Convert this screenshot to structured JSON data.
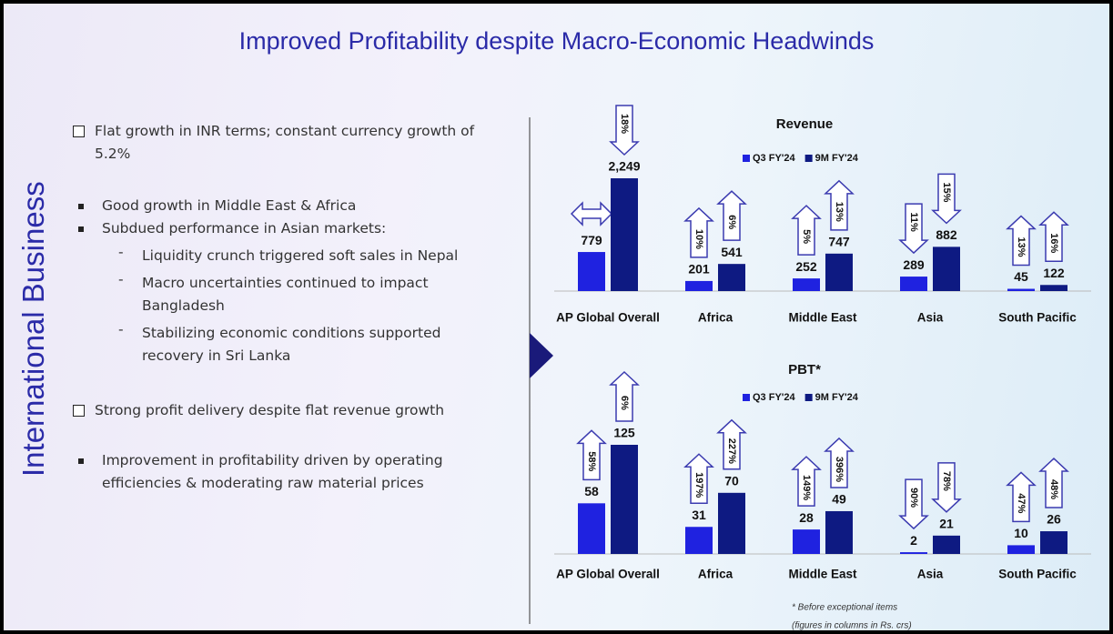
{
  "title": "Improved Profitability despite Macro-Economic Headwinds",
  "side_label": "International Business",
  "bullets": [
    {
      "level": "box",
      "text": "Flat growth in INR terms; constant currency growth of 5.2%"
    },
    {
      "level": "square",
      "text": "Good growth in Middle East & Africa"
    },
    {
      "level": "square",
      "text": "Subdued performance in Asian markets:"
    },
    {
      "level": "dash",
      "text": "Liquidity crunch triggered soft sales in Nepal"
    },
    {
      "level": "dash",
      "text": "Macro uncertainties continued to impact Bangladesh"
    },
    {
      "level": "dash",
      "text": "Stabilizing economic conditions supported recovery in Sri Lanka"
    },
    {
      "level": "box",
      "text": "Strong profit delivery despite flat revenue growth"
    },
    {
      "level": "square",
      "text": "Improvement in profitability driven by operating efficiencies & moderating raw material prices"
    }
  ],
  "chart_data": [
    {
      "type": "bar",
      "title": "Revenue",
      "categories": [
        "AP Global Overall",
        "Africa",
        "Middle East",
        "Asia",
        "South Pacific"
      ],
      "series": [
        {
          "name": "Q3 FY'24",
          "color": "#1f22e0",
          "values": [
            779,
            201,
            252,
            289,
            45
          ],
          "growth_labels": [
            null,
            "10%",
            "5%",
            "11%",
            "13%"
          ],
          "growth_dirs": [
            "both",
            "up",
            "up",
            "down",
            "up"
          ]
        },
        {
          "name": "9M FY'24",
          "color": "#0e1a82",
          "values": [
            2249,
            541,
            747,
            882,
            122
          ],
          "value_labels": [
            "2,249",
            "541",
            "747",
            "882",
            "122"
          ],
          "growth_labels": [
            "18%",
            "6%",
            "13%",
            "15%",
            "16%"
          ],
          "growth_dirs": [
            "down",
            "up",
            "up",
            "down",
            "up"
          ]
        }
      ]
    },
    {
      "type": "bar",
      "title": "PBT*",
      "categories": [
        "AP Global Overall",
        "Africa",
        "Middle East",
        "Asia",
        "South Pacific"
      ],
      "series": [
        {
          "name": "Q3 FY'24",
          "color": "#1f22e0",
          "values": [
            58,
            31,
            28,
            2,
            10
          ],
          "growth_labels": [
            "58%",
            "197%",
            "149%",
            "90%",
            "47%"
          ],
          "growth_dirs": [
            "up",
            "up",
            "up",
            "down",
            "up"
          ]
        },
        {
          "name": "9M FY'24",
          "color": "#0e1a82",
          "values": [
            125,
            70,
            49,
            21,
            26
          ],
          "growth_labels": [
            "6%",
            "227%",
            "396%",
            "78%",
            "48%"
          ],
          "growth_dirs": [
            "up",
            "up",
            "up",
            "down",
            "up"
          ]
        }
      ],
      "notes": [
        "* Before exceptional items",
        "(figures in columns in Rs. crs)"
      ]
    }
  ]
}
